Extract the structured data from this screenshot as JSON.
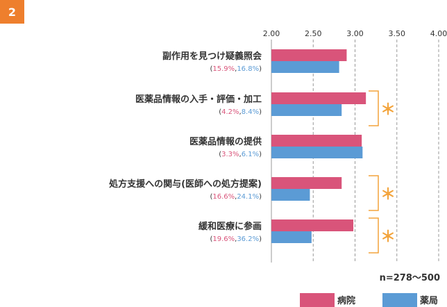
{
  "badge": "2",
  "colors": {
    "hospital": "#d9547a",
    "pharmacy": "#5b9bd5",
    "pct_hospital": "#d9547a",
    "pct_pharmacy": "#5b9bd5",
    "significance": "#f3a43c",
    "text": "#333333",
    "grid": "#999999"
  },
  "note": "n=278〜500",
  "chart_data": {
    "type": "bar",
    "orientation": "horizontal",
    "categories": [
      "副作用を見つけ疑義照会",
      "医薬品情報の入手・評価・加工",
      "医薬品情報の提供",
      "処方支援への関与(医師への処方提案)",
      "緩和医療に参画"
    ],
    "percent_labels": [
      {
        "hospital": "15.9%",
        "pharmacy": "16.8%"
      },
      {
        "hospital": "4.2%",
        "pharmacy": "8.4%"
      },
      {
        "hospital": "3.3%",
        "pharmacy": "6.1%"
      },
      {
        "hospital": "16.6%",
        "pharmacy": "24.1%"
      },
      {
        "hospital": "19.6%",
        "pharmacy": "36.2%"
      }
    ],
    "series": [
      {
        "name": "病院",
        "values": [
          2.9,
          3.13,
          3.08,
          2.84,
          2.98
        ]
      },
      {
        "name": "薬局",
        "values": [
          2.81,
          2.84,
          3.09,
          2.46,
          2.48
        ]
      }
    ],
    "significant": [
      false,
      true,
      false,
      true,
      true
    ],
    "significance_mark": "＊",
    "xlim": [
      2.0,
      4.0
    ],
    "ticks": [
      "2.00",
      "2.50",
      "3.00",
      "3.50",
      "4.00"
    ],
    "grid": true,
    "legend_position": "bottom-right"
  }
}
